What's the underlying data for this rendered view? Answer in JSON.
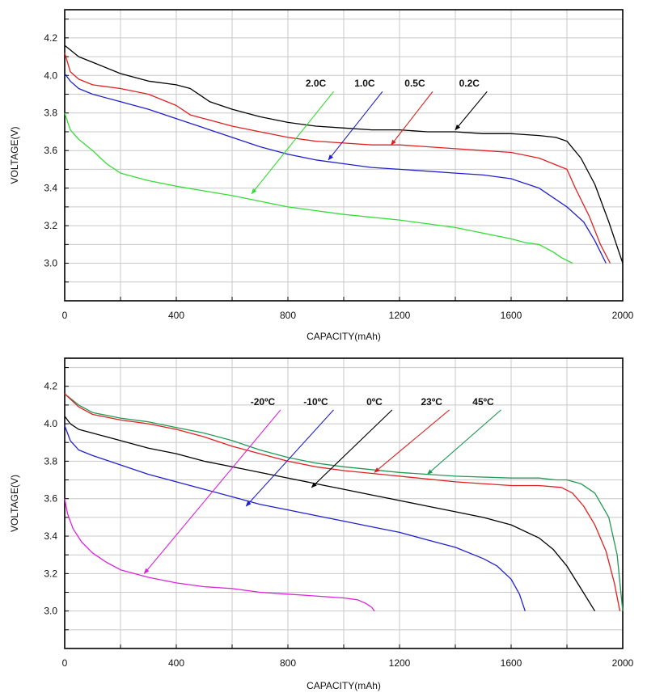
{
  "chart_data": [
    {
      "type": "line",
      "xlabel": "CAPACITY(mAh)",
      "ylabel": "VOLTAGE(V)",
      "xlim": [
        0,
        2000
      ],
      "ylim": [
        2.8,
        4.35
      ],
      "xticks": [
        0,
        400,
        800,
        1200,
        1600,
        2000
      ],
      "yticks": [
        3.0,
        3.2,
        3.4,
        3.6,
        3.8,
        4.0,
        4.2
      ],
      "grid": true,
      "series": [
        {
          "name": "0.2C",
          "color": "#000000",
          "x": [
            0,
            50,
            100,
            200,
            300,
            400,
            450,
            520,
            600,
            700,
            800,
            900,
            1000,
            1100,
            1200,
            1300,
            1400,
            1500,
            1600,
            1700,
            1760,
            1800,
            1850,
            1900,
            1950,
            2000
          ],
          "y": [
            4.16,
            4.1,
            4.07,
            4.01,
            3.97,
            3.95,
            3.93,
            3.86,
            3.82,
            3.78,
            3.75,
            3.73,
            3.72,
            3.71,
            3.71,
            3.7,
            3.7,
            3.69,
            3.69,
            3.68,
            3.67,
            3.65,
            3.56,
            3.42,
            3.22,
            3.0
          ],
          "label": {
            "text": "0.2C",
            "x": 1450,
            "y": 3.94,
            "arrow_to": [
              1400,
              3.71
            ]
          }
        },
        {
          "name": "0.5C",
          "color": "#e02020",
          "x": [
            0,
            20,
            50,
            100,
            200,
            300,
            400,
            450,
            500,
            600,
            700,
            800,
            900,
            1000,
            1100,
            1200,
            1300,
            1400,
            1500,
            1600,
            1700,
            1800,
            1830,
            1880,
            1920,
            1955
          ],
          "y": [
            4.12,
            4.02,
            3.98,
            3.95,
            3.93,
            3.9,
            3.84,
            3.79,
            3.77,
            3.73,
            3.7,
            3.67,
            3.65,
            3.64,
            3.63,
            3.63,
            3.62,
            3.61,
            3.6,
            3.59,
            3.56,
            3.5,
            3.4,
            3.25,
            3.1,
            3.0
          ],
          "label": {
            "text": "0.5C",
            "x": 1255,
            "y": 3.94,
            "arrow_to": [
              1170,
              3.63
            ]
          }
        },
        {
          "name": "1.0C",
          "color": "#2020d0",
          "x": [
            0,
            20,
            50,
            100,
            200,
            300,
            400,
            500,
            600,
            700,
            800,
            900,
            1000,
            1100,
            1200,
            1300,
            1400,
            1500,
            1600,
            1700,
            1800,
            1860,
            1900,
            1940
          ],
          "y": [
            4.01,
            3.97,
            3.93,
            3.9,
            3.86,
            3.82,
            3.77,
            3.72,
            3.67,
            3.62,
            3.58,
            3.55,
            3.53,
            3.51,
            3.5,
            3.49,
            3.48,
            3.47,
            3.45,
            3.4,
            3.3,
            3.22,
            3.12,
            3.0
          ],
          "label": {
            "text": "1.0C",
            "x": 1075,
            "y": 3.94,
            "arrow_to": [
              945,
              3.55
            ]
          }
        },
        {
          "name": "2.0C",
          "color": "#33dd33",
          "x": [
            0,
            20,
            50,
            100,
            150,
            200,
            300,
            400,
            600,
            800,
            1000,
            1200,
            1400,
            1500,
            1600,
            1650,
            1700,
            1750,
            1780,
            1820
          ],
          "y": [
            3.8,
            3.71,
            3.66,
            3.6,
            3.53,
            3.48,
            3.44,
            3.41,
            3.36,
            3.3,
            3.26,
            3.23,
            3.19,
            3.16,
            3.13,
            3.11,
            3.1,
            3.06,
            3.03,
            3.0
          ],
          "label": {
            "text": "2.0C",
            "x": 900,
            "y": 3.94,
            "arrow_to": [
              670,
              3.37
            ]
          }
        }
      ]
    },
    {
      "type": "line",
      "xlabel": "CAPACITY(mAh)",
      "ylabel": "VOLTAGE(V)",
      "xlim": [
        0,
        2000
      ],
      "ylim": [
        2.8,
        4.35
      ],
      "xticks": [
        0,
        400,
        800,
        1200,
        1600,
        2000
      ],
      "yticks": [
        3.0,
        3.2,
        3.4,
        3.6,
        3.8,
        4.0,
        4.2
      ],
      "grid": true,
      "series": [
        {
          "name": "45ºC",
          "color": "#229955",
          "x": [
            0,
            50,
            100,
            200,
            300,
            400,
            500,
            600,
            700,
            800,
            900,
            1000,
            1200,
            1400,
            1600,
            1700,
            1760,
            1800,
            1850,
            1900,
            1950,
            1980,
            2000
          ],
          "y": [
            4.16,
            4.1,
            4.06,
            4.03,
            4.01,
            3.98,
            3.95,
            3.91,
            3.86,
            3.82,
            3.79,
            3.77,
            3.74,
            3.72,
            3.71,
            3.71,
            3.7,
            3.7,
            3.68,
            3.63,
            3.5,
            3.3,
            3.0
          ],
          "label": {
            "text": "45ºC",
            "x": 1500,
            "y": 4.1,
            "arrow_to": [
              1300,
              3.73
            ]
          }
        },
        {
          "name": "23ºC",
          "color": "#e02020",
          "x": [
            0,
            50,
            100,
            200,
            300,
            400,
            500,
            600,
            700,
            800,
            900,
            1000,
            1200,
            1400,
            1600,
            1700,
            1780,
            1820,
            1860,
            1900,
            1940,
            1970,
            1990
          ],
          "y": [
            4.16,
            4.09,
            4.05,
            4.02,
            4.0,
            3.97,
            3.93,
            3.88,
            3.84,
            3.8,
            3.77,
            3.75,
            3.72,
            3.69,
            3.67,
            3.67,
            3.66,
            3.63,
            3.56,
            3.46,
            3.32,
            3.15,
            3.0
          ],
          "label": {
            "text": "23ºC",
            "x": 1315,
            "y": 4.1,
            "arrow_to": [
              1110,
              3.74
            ]
          }
        },
        {
          "name": "0ºC",
          "color": "#000000",
          "x": [
            0,
            20,
            50,
            100,
            200,
            300,
            400,
            500,
            600,
            700,
            800,
            900,
            1000,
            1100,
            1200,
            1300,
            1400,
            1500,
            1600,
            1700,
            1750,
            1800,
            1850,
            1900
          ],
          "y": [
            4.04,
            4.0,
            3.97,
            3.95,
            3.91,
            3.87,
            3.84,
            3.8,
            3.77,
            3.74,
            3.71,
            3.68,
            3.65,
            3.62,
            3.59,
            3.56,
            3.53,
            3.5,
            3.46,
            3.39,
            3.33,
            3.24,
            3.12,
            3.0
          ],
          "label": {
            "text": "0ºC",
            "x": 1110,
            "y": 4.1,
            "arrow_to": [
              885,
              3.66
            ]
          }
        },
        {
          "name": "-10ºC",
          "color": "#2020d0",
          "x": [
            0,
            20,
            50,
            100,
            200,
            300,
            400,
            500,
            600,
            700,
            800,
            900,
            1000,
            1100,
            1200,
            1300,
            1400,
            1500,
            1550,
            1600,
            1630,
            1650
          ],
          "y": [
            3.99,
            3.91,
            3.86,
            3.83,
            3.78,
            3.73,
            3.69,
            3.65,
            3.61,
            3.57,
            3.54,
            3.51,
            3.48,
            3.45,
            3.42,
            3.38,
            3.34,
            3.28,
            3.24,
            3.17,
            3.09,
            3.0
          ],
          "label": {
            "text": "-10ºC",
            "x": 900,
            "y": 4.1,
            "arrow_to": [
              650,
              3.56
            ]
          }
        },
        {
          "name": "-20ºC",
          "color": "#dd22dd",
          "x": [
            0,
            10,
            30,
            60,
            100,
            150,
            200,
            300,
            400,
            500,
            600,
            700,
            800,
            900,
            1000,
            1050,
            1080,
            1100,
            1110
          ],
          "y": [
            3.6,
            3.52,
            3.44,
            3.37,
            3.31,
            3.26,
            3.22,
            3.18,
            3.15,
            3.13,
            3.12,
            3.1,
            3.09,
            3.08,
            3.07,
            3.06,
            3.04,
            3.02,
            3.0
          ],
          "label": {
            "text": "-20ºC",
            "x": 710,
            "y": 4.1,
            "arrow_to": [
              285,
              3.2
            ]
          }
        }
      ]
    }
  ]
}
